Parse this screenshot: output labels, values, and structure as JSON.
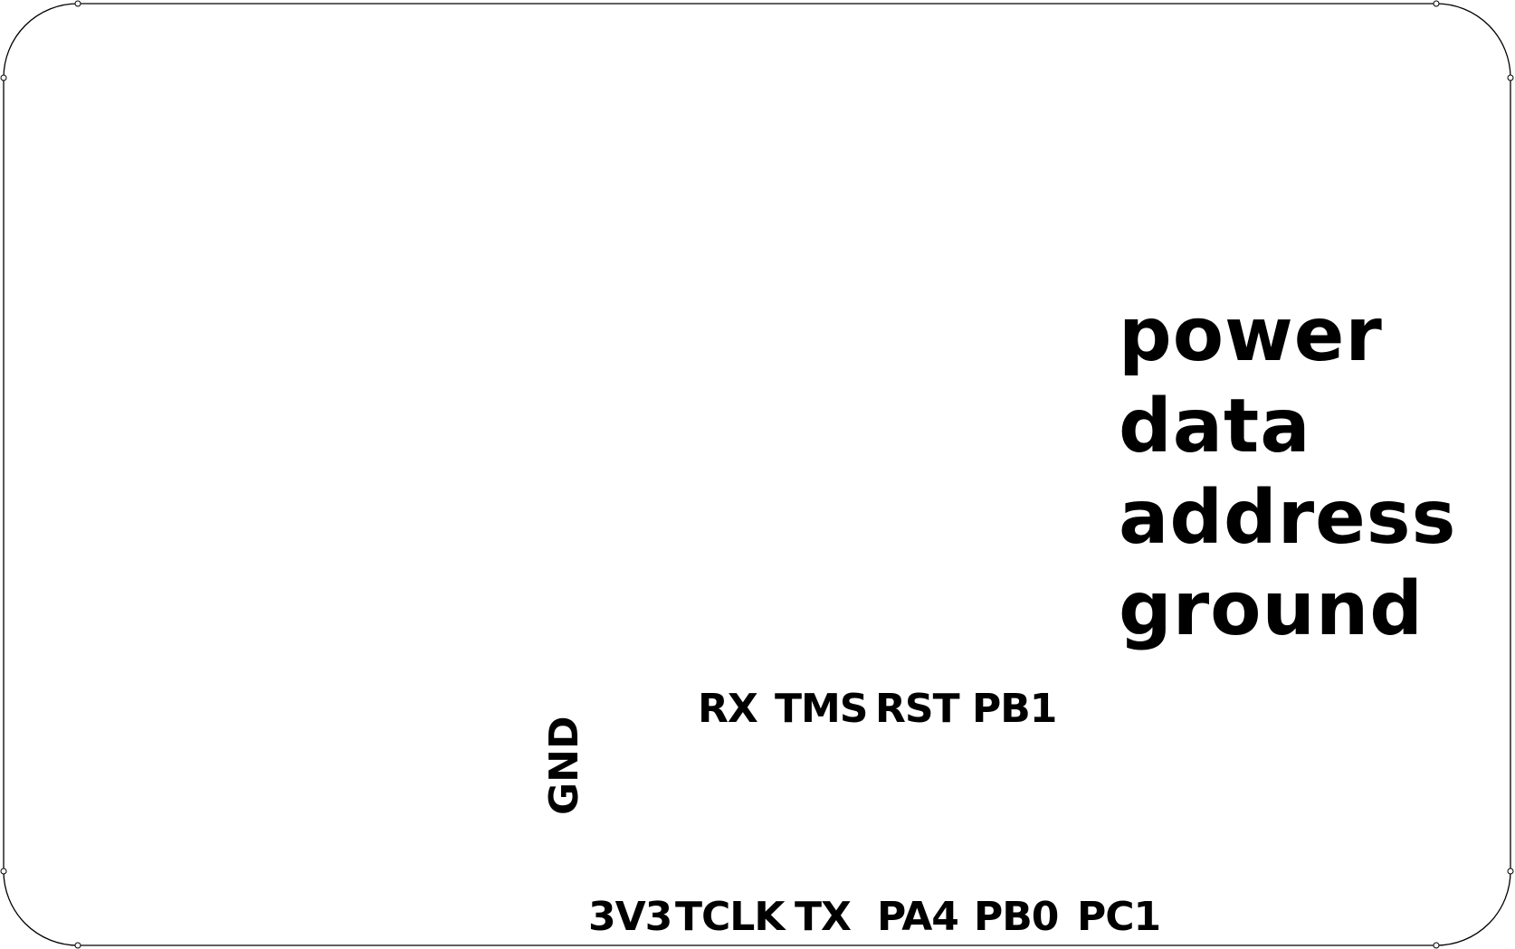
{
  "legend": {
    "items": [
      "power",
      "data",
      "address",
      "ground"
    ]
  },
  "pins": {
    "top_row": [
      "RX",
      "TMS",
      "RST",
      "PB1"
    ],
    "bottom_row": [
      "3V3",
      "TCLK",
      "TX",
      "PA4",
      "PB0",
      "PC1"
    ],
    "side": "GND"
  },
  "colors": {
    "outline": "#000000",
    "background": "#ffffff",
    "text": "#000000"
  }
}
